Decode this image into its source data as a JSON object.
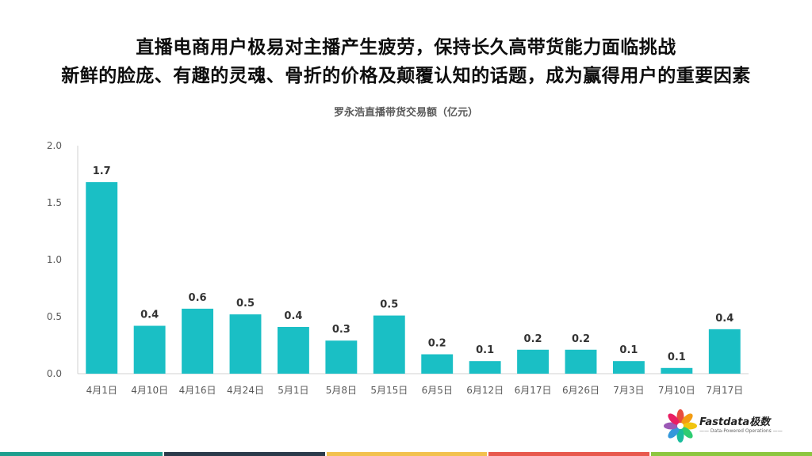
{
  "headline": {
    "line1": "直播电商用户极易对主播产生疲劳，保持长久高带货能力面临挑战",
    "line2": "新鲜的脸庞、有趣的灵魂、骨折的价格及颠覆认知的话题，成为赢得用户的重要因素"
  },
  "chart_data": {
    "type": "bar",
    "title": "罗永浩直播带货交易额（亿元）",
    "categories": [
      "4月1日",
      "4月10日",
      "4月16日",
      "4月24日",
      "5月1日",
      "5月8日",
      "5月15日",
      "6月5日",
      "6月12日",
      "6月17日",
      "6月26日",
      "7月3日",
      "7月10日",
      "7月17日"
    ],
    "values": [
      1.68,
      0.42,
      0.57,
      0.52,
      0.41,
      0.29,
      0.51,
      0.17,
      0.11,
      0.21,
      0.21,
      0.11,
      0.05,
      0.39
    ],
    "data_labels": [
      "1.7",
      "0.4",
      "0.6",
      "0.5",
      "0.4",
      "0.3",
      "0.5",
      "0.2",
      "0.1",
      "0.2",
      "0.2",
      "0.1",
      "0.1",
      "0.4"
    ],
    "y_ticks": [
      "0.0",
      "0.5",
      "1.0",
      "1.5",
      "2.0"
    ],
    "ylim": [
      0,
      2.0
    ],
    "grid": false,
    "bar_color": "#1abfc5"
  },
  "logo": {
    "name": "Fastdata极数",
    "tagline": "—— Data-Powered Operations ——"
  },
  "footer_colors": [
    "#1d9e8e",
    "#2b3a4a",
    "#f2c14e",
    "#e8584d",
    "#8cc63f"
  ]
}
